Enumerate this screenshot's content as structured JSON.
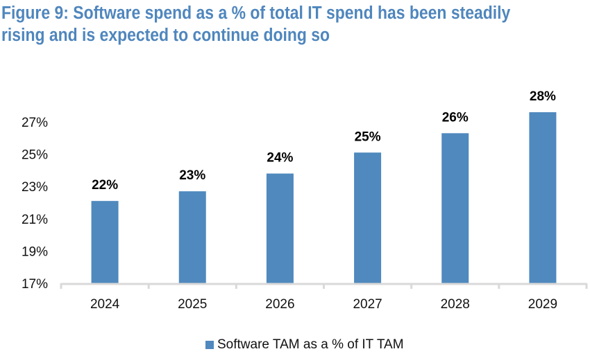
{
  "figure": {
    "title_line1": "Figure 9: Software spend as a % of total IT spend has been steadily",
    "title_line2": "rising and is expected to continue doing so"
  },
  "colors": {
    "title": "#4f86bd",
    "bar": "#4f89be",
    "axis": "#d9d9d9",
    "text": "#111111"
  },
  "chart_data": {
    "type": "bar",
    "title": "Figure 9: Software spend as a % of total IT spend has been steadily rising and is expected to continue doing so",
    "xlabel": "",
    "ylabel": "",
    "categories": [
      "2024",
      "2025",
      "2026",
      "2027",
      "2028",
      "2029"
    ],
    "series": [
      {
        "name": "Software TAM as a % of IT TAM",
        "values": [
          22.1,
          22.7,
          23.8,
          25.1,
          26.3,
          27.6
        ],
        "data_labels": [
          "22%",
          "23%",
          "24%",
          "25%",
          "26%",
          "28%"
        ]
      }
    ],
    "ylim": [
      17,
      28
    ],
    "yticks": [
      17,
      19,
      21,
      23,
      25,
      27
    ],
    "ytick_labels": [
      "17%",
      "19%",
      "21%",
      "23%",
      "25%",
      "27%"
    ],
    "grid": false,
    "legend": {
      "position": "bottom-center",
      "entries": [
        "Software TAM as a % of IT TAM"
      ]
    }
  }
}
